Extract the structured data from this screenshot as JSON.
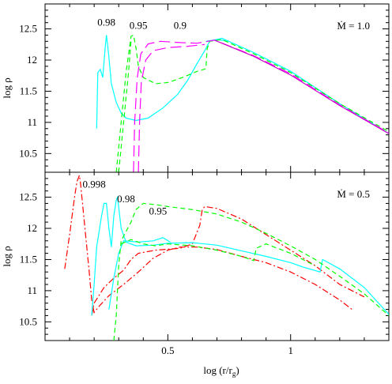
{
  "chart_data": [
    {
      "type": "line",
      "panel": "top",
      "mdot_label": "Ṁ = 1.0",
      "xlim": [
        0.0,
        1.4
      ],
      "ylim": [
        10.2,
        12.9
      ],
      "ylabel": "log ρ",
      "yticks": [
        10.5,
        11.0,
        11.5,
        12.0,
        12.5
      ],
      "ytick_labels": [
        "10.5",
        "11",
        "11.5",
        "12",
        "12.5"
      ],
      "xticks": [
        0.5,
        1.0
      ],
      "annotations": [
        {
          "text": "0.98",
          "x": 0.25,
          "y": 12.55
        },
        {
          "text": "0.95",
          "x": 0.38,
          "y": 12.5
        },
        {
          "text": "0.9",
          "x": 0.55,
          "y": 12.5
        }
      ],
      "series": [
        {
          "color": "#00ffff",
          "dash": "solid",
          "points": [
            [
              0.21,
              10.9
            ],
            [
              0.215,
              11.8
            ],
            [
              0.225,
              11.85
            ],
            [
              0.235,
              11.72
            ],
            [
              0.245,
              12.2
            ],
            [
              0.25,
              12.4
            ],
            [
              0.26,
              12.05
            ],
            [
              0.27,
              11.62
            ],
            [
              0.29,
              11.32
            ],
            [
              0.31,
              11.15
            ],
            [
              0.33,
              11.07
            ],
            [
              0.37,
              11.03
            ],
            [
              0.42,
              11.07
            ],
            [
              0.48,
              11.23
            ],
            [
              0.54,
              11.45
            ],
            [
              0.58,
              11.67
            ],
            [
              0.62,
              11.95
            ],
            [
              0.65,
              12.15
            ],
            [
              0.67,
              12.3
            ],
            [
              0.72,
              12.35
            ],
            [
              0.85,
              12.12
            ],
            [
              1.0,
              11.82
            ],
            [
              1.2,
              11.3
            ],
            [
              1.4,
              10.82
            ]
          ]
        },
        {
          "color": "#00ffff",
          "dash": "solid",
          "points": [
            [
              0.655,
              12.3
            ],
            [
              0.7,
              12.33
            ],
            [
              0.75,
              12.3
            ]
          ]
        },
        {
          "color": "#00ff00",
          "dash": "6,4",
          "points": [
            [
              0.29,
              10.2
            ],
            [
              0.31,
              11.0
            ],
            [
              0.33,
              11.8
            ],
            [
              0.35,
              12.38
            ],
            [
              0.36,
              12.4
            ],
            [
              0.37,
              12.2
            ],
            [
              0.38,
              11.9
            ],
            [
              0.4,
              11.72
            ],
            [
              0.45,
              11.62
            ],
            [
              0.5,
              11.64
            ],
            [
              0.56,
              11.72
            ],
            [
              0.62,
              11.82
            ],
            [
              0.655,
              11.86
            ],
            [
              0.66,
              12.18
            ],
            [
              0.67,
              12.3
            ],
            [
              0.72,
              12.33
            ],
            [
              0.85,
              12.1
            ],
            [
              1.0,
              11.8
            ],
            [
              1.2,
              11.3
            ],
            [
              1.4,
              10.85
            ]
          ]
        },
        {
          "color": "#00ff00",
          "dash": "6,4",
          "points": [
            [
              0.3,
              10.2
            ],
            [
              0.32,
              11.0
            ],
            [
              0.34,
              11.8
            ],
            [
              0.35,
              12.3
            ]
          ]
        },
        {
          "color": "#ff00ff",
          "dash": "14,6",
          "points": [
            [
              0.36,
              10.2
            ],
            [
              0.365,
              11.0
            ],
            [
              0.375,
              11.7
            ],
            [
              0.39,
              12.1
            ],
            [
              0.42,
              12.26
            ],
            [
              0.47,
              12.3
            ],
            [
              0.55,
              12.28
            ],
            [
              0.62,
              12.27
            ],
            [
              0.69,
              12.32
            ],
            [
              0.85,
              12.07
            ],
            [
              1.0,
              11.78
            ],
            [
              1.2,
              11.28
            ],
            [
              1.4,
              10.83
            ]
          ]
        },
        {
          "color": "#ff00ff",
          "dash": "14,6",
          "points": [
            [
              0.38,
              10.2
            ],
            [
              0.385,
              11.0
            ],
            [
              0.392,
              11.65
            ],
            [
              0.41,
              12.0
            ],
            [
              0.44,
              12.15
            ],
            [
              0.5,
              12.2
            ],
            [
              0.58,
              12.22
            ],
            [
              0.65,
              12.25
            ]
          ]
        },
        {
          "color": "#cc00cc",
          "dash": "solid",
          "points": [
            [
              0.69,
              12.32
            ],
            [
              0.85,
              12.06
            ],
            [
              1.0,
              11.76
            ],
            [
              1.2,
              11.27
            ],
            [
              1.4,
              10.82
            ]
          ]
        }
      ]
    },
    {
      "type": "line",
      "panel": "bottom",
      "mdot_label": "Ṁ = 0.5",
      "xlim": [
        0.0,
        1.4
      ],
      "ylim": [
        10.2,
        12.9
      ],
      "xlabel": "log (r/rg)",
      "ylabel": "log ρ",
      "yticks": [
        10.5,
        11.0,
        11.5,
        12.0,
        12.5
      ],
      "ytick_labels": [
        "10.5",
        "11",
        "11.5",
        "12",
        "12.5"
      ],
      "xticks": [
        0.5,
        1.0
      ],
      "xtick_labels": [
        "0.5",
        "1"
      ],
      "annotations": [
        {
          "text": "0.998",
          "x": 0.2,
          "y": 12.65
        },
        {
          "text": "0.98",
          "x": 0.33,
          "y": 12.42
        },
        {
          "text": "0.95",
          "x": 0.46,
          "y": 12.22
        }
      ],
      "series": [
        {
          "color": "#ff0000",
          "dash": "8,3,2,3",
          "points": [
            [
              0.08,
              11.35
            ],
            [
              0.1,
              11.9
            ],
            [
              0.12,
              12.5
            ],
            [
              0.13,
              12.75
            ],
            [
              0.14,
              12.85
            ],
            [
              0.145,
              12.7
            ],
            [
              0.16,
              12.1
            ],
            [
              0.18,
              11.3
            ],
            [
              0.19,
              10.85
            ],
            [
              0.2,
              10.65
            ],
            [
              0.22,
              10.75
            ],
            [
              0.26,
              10.92
            ],
            [
              0.32,
              11.1
            ],
            [
              0.38,
              11.3
            ],
            [
              0.44,
              11.52
            ],
            [
              0.5,
              11.65
            ],
            [
              0.55,
              11.7
            ],
            [
              0.62,
              11.7
            ],
            [
              0.7,
              11.66
            ],
            [
              0.8,
              11.55
            ],
            [
              0.9,
              11.45
            ],
            [
              1.0,
              11.3
            ],
            [
              1.1,
              11.1
            ],
            [
              1.2,
              10.85
            ],
            [
              1.25,
              10.7
            ]
          ]
        },
        {
          "color": "#ff0000",
          "dash": "8,3,2,3",
          "points": [
            [
              0.19,
              10.6
            ],
            [
              0.2,
              10.8
            ],
            [
              0.24,
              11.05
            ],
            [
              0.28,
              11.2
            ],
            [
              0.32,
              11.33
            ],
            [
              0.35,
              11.5
            ],
            [
              0.38,
              11.6
            ],
            [
              0.45,
              11.65
            ],
            [
              0.55,
              11.68
            ],
            [
              0.6,
              11.75
            ],
            [
              0.63,
              12.05
            ],
            [
              0.64,
              12.3
            ],
            [
              0.65,
              12.35
            ],
            [
              0.7,
              12.32
            ],
            [
              0.8,
              12.15
            ],
            [
              0.9,
              11.9
            ],
            [
              1.0,
              11.65
            ],
            [
              1.1,
              11.4
            ],
            [
              1.2,
              11.1
            ],
            [
              1.3,
              10.9
            ]
          ]
        },
        {
          "color": "#00ffff",
          "dash": "solid",
          "points": [
            [
              0.19,
              10.6
            ],
            [
              0.2,
              11.1
            ],
            [
              0.21,
              11.7
            ],
            [
              0.23,
              12.2
            ],
            [
              0.24,
              12.4
            ],
            [
              0.25,
              12.4
            ],
            [
              0.26,
              12.0
            ],
            [
              0.27,
              11.7
            ],
            [
              0.28,
              12.2
            ],
            [
              0.29,
              12.45
            ],
            [
              0.295,
              12.5
            ],
            [
              0.31,
              12.0
            ],
            [
              0.33,
              11.78
            ],
            [
              0.37,
              11.72
            ],
            [
              0.44,
              11.73
            ],
            [
              0.5,
              11.76
            ],
            [
              0.6,
              11.77
            ],
            [
              0.7,
              11.73
            ],
            [
              0.8,
              11.64
            ],
            [
              0.9,
              11.55
            ],
            [
              1.0,
              11.45
            ],
            [
              1.05,
              11.38
            ],
            [
              1.12,
              11.3
            ],
            [
              1.13,
              11.5
            ],
            [
              1.2,
              11.35
            ],
            [
              1.3,
              11.05
            ],
            [
              1.4,
              10.62
            ]
          ]
        },
        {
          "color": "#00ffff",
          "dash": "solid",
          "points": [
            [
              0.26,
              10.7
            ],
            [
              0.28,
              11.2
            ],
            [
              0.3,
              11.6
            ],
            [
              0.32,
              11.8
            ],
            [
              0.38,
              11.78
            ],
            [
              0.44,
              11.8
            ],
            [
              0.48,
              11.85
            ],
            [
              0.51,
              11.78
            ]
          ]
        },
        {
          "color": "#00ff00",
          "dash": "6,4",
          "points": [
            [
              0.28,
              10.2
            ],
            [
              0.29,
              10.6
            ],
            [
              0.3,
              11.4
            ],
            [
              0.31,
              11.8
            ],
            [
              0.33,
              11.95
            ],
            [
              0.35,
              12.1
            ],
            [
              0.37,
              12.3
            ],
            [
              0.4,
              12.4
            ],
            [
              0.45,
              12.38
            ],
            [
              0.5,
              12.35
            ],
            [
              0.6,
              12.3
            ],
            [
              0.7,
              12.23
            ],
            [
              0.8,
              12.1
            ],
            [
              0.9,
              11.92
            ],
            [
              1.0,
              11.72
            ],
            [
              1.1,
              11.5
            ],
            [
              1.2,
              11.23
            ],
            [
              1.3,
              10.95
            ],
            [
              1.4,
              10.6
            ]
          ]
        },
        {
          "color": "#00ff00",
          "dash": "6,4",
          "points": [
            [
              0.31,
              11.75
            ],
            [
              0.35,
              11.82
            ],
            [
              0.4,
              11.75
            ],
            [
              0.45,
              11.72
            ],
            [
              0.5,
              11.75
            ],
            [
              0.6,
              11.72
            ],
            [
              0.7,
              11.65
            ],
            [
              0.8,
              11.55
            ],
            [
              0.85,
              11.48
            ],
            [
              0.86,
              11.68
            ],
            [
              0.9,
              11.75
            ],
            [
              1.0,
              11.6
            ],
            [
              1.1,
              11.4
            ]
          ]
        }
      ]
    }
  ]
}
